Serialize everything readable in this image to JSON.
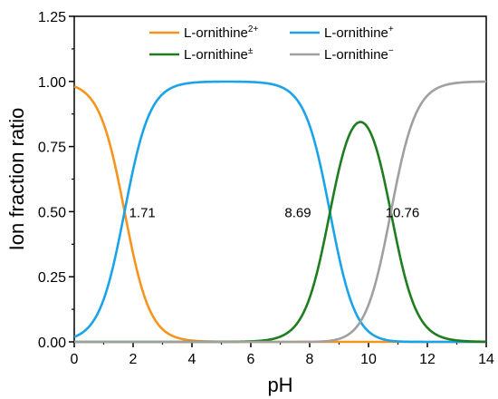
{
  "chart_data": {
    "type": "line",
    "title": "",
    "xlabel": "pH",
    "ylabel": "Ion fraction ratio",
    "xlim": [
      0,
      14
    ],
    "ylim": [
      0,
      1.25
    ],
    "x_ticks": [
      "0",
      "2",
      "4",
      "6",
      "8",
      "10",
      "12",
      "14"
    ],
    "y_ticks": [
      "0.00",
      "0.25",
      "0.50",
      "0.75",
      "1.00",
      "1.25"
    ],
    "grid": false,
    "legend_placement": "top-center",
    "pKa": [
      1.71,
      8.69,
      10.76
    ],
    "annotations": [
      {
        "text": "1.71",
        "x": 1.71,
        "y": 0.5
      },
      {
        "text": "8.69",
        "x": 8.69,
        "y": 0.5
      },
      {
        "text": "10.76",
        "x": 10.76,
        "y": 0.5
      }
    ],
    "series": [
      {
        "name": "L-ornithine",
        "sup": "2+",
        "color": "#f7941d",
        "species": 0
      },
      {
        "name": "L-ornithine",
        "sup": "+",
        "color": "#1aa3e8",
        "species": 1
      },
      {
        "name": "L-ornithine",
        "sup": "±",
        "color": "#1e7d1e",
        "species": 2
      },
      {
        "name": "L-ornithine",
        "sup": "−",
        "color": "#a0a0a0",
        "species": 3
      }
    ]
  }
}
